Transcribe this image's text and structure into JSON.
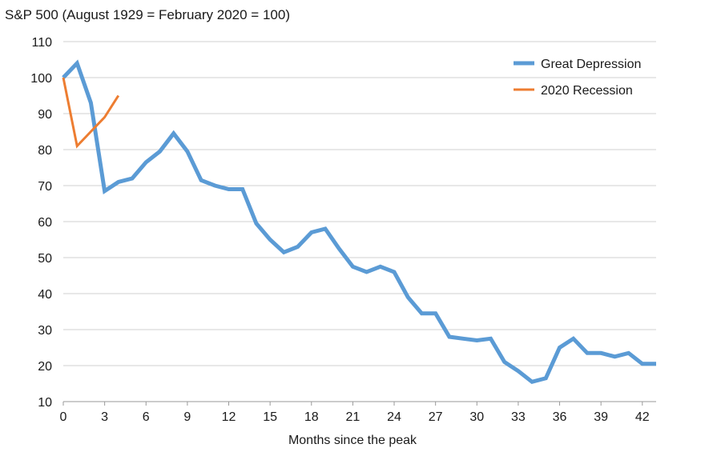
{
  "chart_data": {
    "type": "line",
    "title": "S&P 500 (August 1929 = February 2020 = 100)",
    "xlabel": "Months since the peak",
    "ylabel": "",
    "xlim": [
      0,
      43
    ],
    "ylim": [
      10,
      110
    ],
    "x_ticks": [
      0,
      3,
      6,
      9,
      12,
      15,
      18,
      21,
      24,
      27,
      30,
      33,
      36,
      39,
      42
    ],
    "y_ticks": [
      10,
      20,
      30,
      40,
      50,
      60,
      70,
      80,
      90,
      100,
      110
    ],
    "grid": true,
    "legend_position": "top-right",
    "series": [
      {
        "name": "Great Depression",
        "color": "#5b9bd5",
        "x": [
          0,
          1,
          2,
          3,
          4,
          5,
          6,
          7,
          8,
          9,
          10,
          11,
          12,
          13,
          14,
          15,
          16,
          17,
          18,
          19,
          20,
          21,
          22,
          23,
          24,
          25,
          26,
          27,
          28,
          29,
          30,
          31,
          32,
          33,
          34,
          35,
          36,
          37,
          38,
          39,
          40,
          41,
          42,
          43
        ],
        "values": [
          100,
          104,
          93,
          68.5,
          71,
          72,
          76.5,
          79.5,
          84.5,
          79.5,
          71.5,
          70,
          69,
          69,
          59.5,
          55,
          51.5,
          53,
          57,
          58,
          52.5,
          47.5,
          46,
          47.5,
          46,
          39,
          34.5,
          34.5,
          28,
          27.5,
          27,
          27.5,
          21,
          18.5,
          15.5,
          16.5,
          25,
          27.5,
          23.5,
          23.5,
          22.5,
          23.5,
          20.5,
          20.5
        ]
      },
      {
        "name": "2020 Recession",
        "color": "#ed7d31",
        "x": [
          0,
          1,
          2,
          3,
          4
        ],
        "values": [
          100,
          81,
          85,
          89,
          95
        ]
      }
    ]
  }
}
